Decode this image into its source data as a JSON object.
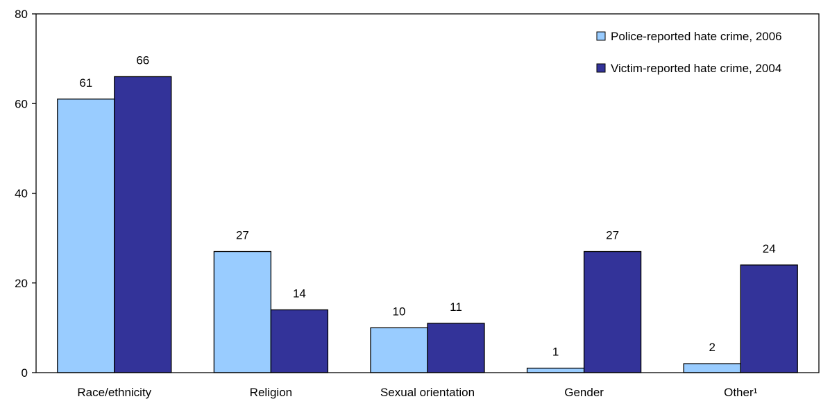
{
  "chart_data": {
    "type": "bar",
    "categories": [
      "Race/ethnicity",
      "Religion",
      "Sexual orientation",
      "Gender",
      "Other¹"
    ],
    "series": [
      {
        "name": "Police-reported hate crime, 2006",
        "values": [
          61,
          27,
          10,
          1,
          2
        ],
        "labels": [
          "61",
          "27",
          "10",
          "1",
          "2"
        ],
        "color": "#99CCFF"
      },
      {
        "name": "Victim-reported hate crime, 2004",
        "values": [
          66,
          14,
          11,
          27,
          24
        ],
        "labels": [
          "66",
          "14",
          "11",
          "27",
          "24"
        ],
        "color": "#333399"
      }
    ],
    "title": "",
    "xlabel": "",
    "ylabel": "",
    "ylim": [
      0,
      80
    ],
    "yticks": [
      "0",
      "20",
      "40",
      "60",
      "80"
    ],
    "grid": false,
    "legend_position": "top-right"
  }
}
